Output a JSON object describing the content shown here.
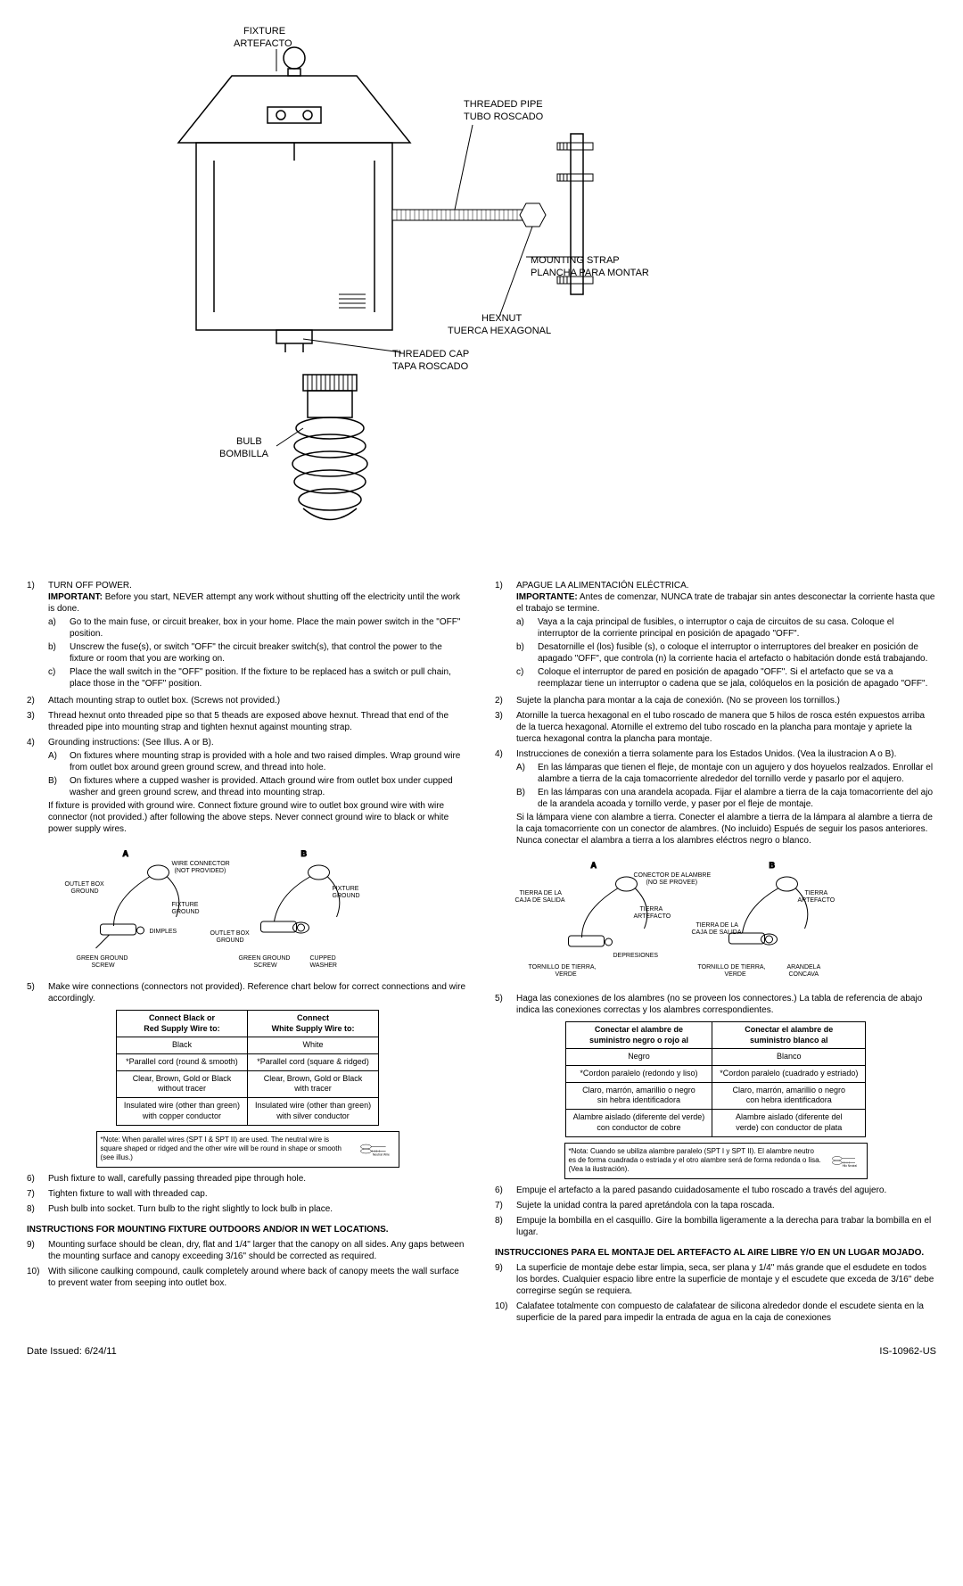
{
  "labels": {
    "fixture": "FIXTURE\nARTEFACTO",
    "threadedPipe": "THREADED PIPE\nTUBO ROSCADO",
    "mountingStrap": "MOUNTING STRAP\nPLANCHA PARA MONTAR",
    "hexnut": "HEXNUT\nTUERCA HEXAGONAL",
    "threadedCap": "THREADED CAP\nTAPA ROSCADO",
    "bulb": "BULB\nBOMBILLA"
  },
  "en": {
    "step1": "TURN OFF POWER.",
    "step1_important": "IMPORTANT:",
    "step1_imp_text": " Before you start, NEVER attempt any work without shutting off the electricity until the work is done.",
    "step1a": "Go to the main fuse, or circuit breaker, box in your home. Place the main power switch in the \"OFF\" position.",
    "step1b": "Unscrew the fuse(s), or switch \"OFF\" the circuit breaker switch(s), that control the power to the fixture or room that you are working on.",
    "step1c": "Place the wall switch in the \"OFF\" position. If the fixture to be replaced has a switch or pull chain, place those in the \"OFF\" position.",
    "step2": "Attach mounting strap to outlet box. (Screws not provided.)",
    "step3": "Thread hexnut onto threaded pipe so that 5 theads are exposed above hexnut. Thread that end of the threaded pipe into mounting strap and tighten hexnut against mounting strap.",
    "step4": "Grounding instructions: (See Illus. A or B).",
    "step4A": "On fixtures where mounting strap is provided with a hole and two raised dimples. Wrap ground wire from outlet box around green ground screw, and thread into hole.",
    "step4B": "On fixtures where a cupped washer is provided. Attach ground wire from outlet box under cupped washer and green ground screw, and thread into mounting strap.",
    "step4_tail": "If fixture is provided with ground wire. Connect fixture ground wire to outlet box ground wire with wire connector (not provided.) after following the above steps. Never connect ground wire to black or white power supply wires.",
    "wireLabels": {
      "a": "A",
      "b": "B",
      "wireConnector": "WIRE CONNECTOR (NOT PROVIDED)",
      "outletBoxGround": "OUTLET BOX GROUND",
      "fixtureGround": "FIXTURE GROUND",
      "dimples": "DIMPLES",
      "greenGroundScrew": "GREEN GROUND SCREW",
      "cuppedWasher": "CUPPED WASHER"
    },
    "step5": "Make wire connections (connectors not provided). Reference chart below for correct connections and wire accordingly.",
    "table": {
      "h1": "Connect Black or\nRed Supply Wire to:",
      "h2": "Connect\nWhite Supply Wire to:",
      "r1c1": "Black",
      "r1c2": "White",
      "r2c1": "*Parallel cord (round & smooth)",
      "r2c2": "*Parallel cord (square & ridged)",
      "r3c1": "Clear, Brown, Gold or Black\nwithout tracer",
      "r3c2": "Clear, Brown, Gold or Black\nwith tracer",
      "r4c1": "Insulated wire (other than green)\nwith copper conductor",
      "r4c2": "Insulated wire (other than green)\nwith silver conductor",
      "note": "*Note: When parallel wires (SPT I & SPT II) are used. The neutral wire is square shaped or ridged and the other wire will be round in shape or smooth (see illus.)",
      "neutralWire": "Neutral Wire"
    },
    "step6": "Push fixture to wall, carefully passing threaded pipe through hole.",
    "step7": "Tighten fixture to wall with threaded cap.",
    "step8": "Push bulb into socket. Turn bulb to the right slightly to lock bulb in place.",
    "outdoorHeading": "INSTRUCTIONS FOR MOUNTING FIXTURE OUTDOORS AND/OR IN WET LOCATIONS.",
    "step9": "Mounting surface should be clean, dry, flat and 1/4\" larger that the canopy on all sides. Any gaps between the mounting surface and canopy exceeding 3/16\" should be corrected as required.",
    "step10": "With silicone caulking compound, caulk completely around where back of canopy meets the wall surface to prevent water from seeping into outlet box."
  },
  "es": {
    "step1": "APAGUE LA ALIMENTACIÓN ELÉCTRICA.",
    "step1_important": "IMPORTANTE:",
    "step1_imp_text": " Antes de comenzar, NUNCA trate de trabajar sin antes desconectar la corriente hasta que el trabajo se termine.",
    "step1a": "Vaya a la caja principal de fusibles, o interruptor o caja de circuitos de su casa. Coloque el interruptor de la corriente principal en posición de apagado \"OFF\".",
    "step1b": "Desatornille el (los) fusible (s), o coloque el interruptor o interruptores del breaker en posición de apagado \"OFF\", que controla (n) la corriente hacia el artefacto o habitación donde está trabajando.",
    "step1c": "Coloque el interruptor de pared en posición de apagado \"OFF\". Si el artefacto que se va a reemplazar tiene un interruptor o cadena que se jala, colóquelos en la posición de apagado \"OFF\".",
    "step2": "Sujete la plancha para montar a la caja de conexión. (No se proveen los tornillos.)",
    "step3": "Atornille la tuerca hexagonal en el tubo roscado de manera que 5 hilos de rosca estén expuestos arriba de la tuerca hexagonal. Atornille el extremo del tubo roscado en la plancha para montaje y apriete la tuerca hexagonal contra la plancha para montaje.",
    "step4": "Instrucciones de conexión a tierra solamente para los Estados Unidos. (Vea la ilustracion A o B).",
    "step4A": "En las lámparas que tienen el fleje, de montaje con un agujero y dos hoyuelos realzados. Enrollar el alambre a tierra de la caja tomacorriente alrededor del tornillo verde y pasarlo por el aqujero.",
    "step4B": "En las lámparas con una arandela acopada. Fijar el alambre a tierra de la caja tomacorriente del ajo de la arandela acoada y tornillo verde, y paser por el fleje de montaje.",
    "step4_tail": "Si la lámpara viene con alambre a tierra. Conecter el alambre a tierra de la lámpara al alambre a tierra de la caja tomacorriente con un conector de alambres. (No incluido) Espués de seguir los pasos anteriores. Nunca conectar el alambra a tierra a los alambres eléctros negro o blanco.",
    "wireLabels": {
      "a": "A",
      "b": "B",
      "wireConnector": "CONECTOR DE ALAMBRE (NO SE PROVEE)",
      "outletBoxGround": "TIERRA DE LA CAJA DE SALIDA",
      "fixtureGround": "TIERRA ARTEFACTO",
      "dimples": "DEPRESIONES",
      "greenGroundScrew": "TORNILLO DE TIERRA, VERDE",
      "cuppedWasher": "ARANDELA CONCAVA"
    },
    "step5": "Haga las conexiones de los alambres (no se proveen los connectores.) La tabla de referencia de abajo indica las conexiones correctas y los alambres correspondientes.",
    "table": {
      "h1": "Conectar el alambre de\nsuministro negro o rojo al",
      "h2": "Conectar el alambre de\nsuministro blanco al",
      "r1c1": "Negro",
      "r1c2": "Blanco",
      "r2c1": "*Cordon paralelo (redondo y liso)",
      "r2c2": "*Cordon paralelo (cuadrado y estriado)",
      "r3c1": "Claro, marrón, amarillio o negro\nsin hebra identificadora",
      "r3c2": "Claro, marrón, amarillio o negro\ncon hebra identificadora",
      "r4c1": "Alambre aislado (diferente del verde)\ncon conductor de cobre",
      "r4c2": "Alambre aislado (diferente del\nverde) con conductor de plata",
      "note": "*Nota: Cuando se ubiliza alambre paralelo (SPT I y SPT II). El alambre neutro es de forma cuadrada o estriada y el otro alambre será de forma redonda o lisa. (Vea la ilustración).",
      "neutralWire": "Hilo Neutral"
    },
    "step6": "Empuje el artefacto a la pared pasando cuidadosamente el tubo roscado a través del agujero.",
    "step7": "Sujete la unidad contra la pared apretándola con la tapa roscada.",
    "step8": "Empuje la bombilla en el casquillo. Gire la bombilla ligeramente a la derecha para trabar la bombilla en el lugar.",
    "outdoorHeading": "INSTRUCCIONES PARA EL MONTAJE DEL ARTEFACTO AL AIRE LIBRE Y/O EN UN LUGAR MOJADO.",
    "step9": "La superficie de montaje debe estar limpia, seca, ser plana y 1/4\" más grande que el esdudete en todos los bordes. Cualquier espacio libre entre la superficie de montaje y el escudete que exceda de 3/16\" debe corregirse según se requiera.",
    "step10": "Calafatee totalmente con compuesto de calafatear de silicona alrededor donde el escudete sienta en la superficie de la pared para impedir la entrada de agua en la caja de conexiones"
  },
  "footer": {
    "date": "Date Issued: 6/24/11",
    "doc": "IS-10962-US"
  }
}
